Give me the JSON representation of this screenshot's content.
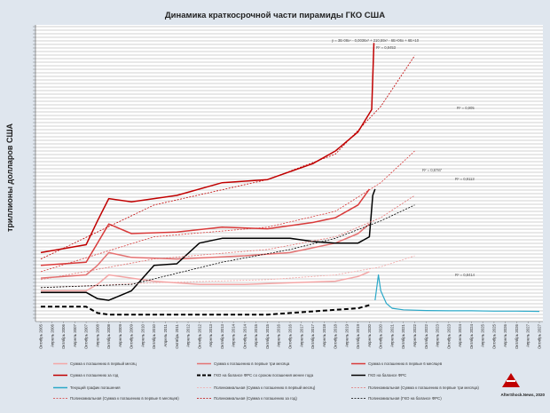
{
  "chart_data": {
    "type": "line",
    "title": "Динамика краткосрочной части пирамиды ГКО США",
    "ylabel": "триллионы долларов США",
    "xlabel": "",
    "grid": true,
    "legend_position": "bottom",
    "x_tick_labels": [
      "Октябрь 2005",
      "Апрель 2006",
      "Октябрь 2006",
      "Апрель 2007",
      "Октябрь 2007",
      "Апрель 2008",
      "Октябрь 2008",
      "Апрель 2009",
      "Октябрь 2009",
      "Апрель 2010",
      "Октябрь 2010",
      "Апрель 2011",
      "Октябрь 2011",
      "Апрель 2012",
      "Октябрь 2012",
      "Апрель 2013",
      "Октябрь 2013",
      "Апрель 2014",
      "Октябрь 2014",
      "Апрель 2015",
      "Октябрь 2015",
      "Апрель 2016",
      "Октябрь 2016",
      "Апрель 2017",
      "Октябрь 2017",
      "Апрель 2018",
      "Октябрь 2018",
      "Апрель 2019",
      "Октябрь 2019",
      "Апрель 2020",
      "Октябрь 2020",
      "Апрель 2021",
      "Октябрь 2021",
      "Апрель 2022",
      "Октябрь 2022",
      "Апрель 2023",
      "Октябрь 2023",
      "Апрель 2024",
      "Октябрь 2024",
      "Апрель 2025",
      "Октябрь 2025",
      "Апрель 2026",
      "Октябрь 2026",
      "Апрель 2027",
      "Октябрь 2027"
    ],
    "ylim": [
      0,
      9
    ],
    "equation": "y = 3E-08x⁴ - 0,0036x³ + 210,59x² - 6E+06x + 6E+10",
    "annotations": [
      "R² = 0,8453",
      "R² = 0,905",
      "R² = 0,8787",
      "R² = 0,9113",
      "R² = 0,8414"
    ],
    "series": [
      {
        "name": "Сумма к погашению в первый месяц",
        "color": "#f4a6a6",
        "style": "solid",
        "points": [
          [
            0,
            0.8
          ],
          [
            4,
            0.8
          ],
          [
            5,
            1.0
          ],
          [
            6,
            1.3
          ],
          [
            8,
            1.2
          ],
          [
            10,
            1.1
          ],
          [
            14,
            1.0
          ],
          [
            18,
            1.0
          ],
          [
            22,
            1.05
          ],
          [
            26,
            1.1
          ],
          [
            28,
            1.25
          ],
          [
            29,
            1.4
          ]
        ]
      },
      {
        "name": "Сумма к погашению в первые три месяца",
        "color": "#e47272",
        "style": "solid",
        "points": [
          [
            0,
            1.2
          ],
          [
            4,
            1.3
          ],
          [
            5,
            1.6
          ],
          [
            6,
            2.0
          ],
          [
            8,
            1.85
          ],
          [
            12,
            1.8
          ],
          [
            18,
            1.9
          ],
          [
            22,
            2.0
          ],
          [
            26,
            2.3
          ],
          [
            28,
            2.6
          ],
          [
            29,
            2.9
          ]
        ]
      },
      {
        "name": "Сумма к погашению в первые 6 месяцев",
        "color": "#d83a3a",
        "style": "solid",
        "points": [
          [
            0,
            1.6
          ],
          [
            4,
            1.7
          ],
          [
            5,
            2.3
          ],
          [
            6,
            2.9
          ],
          [
            8,
            2.6
          ],
          [
            12,
            2.65
          ],
          [
            16,
            2.8
          ],
          [
            20,
            2.75
          ],
          [
            24,
            2.95
          ],
          [
            26,
            3.1
          ],
          [
            28,
            3.5
          ],
          [
            29,
            4.0
          ]
        ]
      },
      {
        "name": "Сумма к погашению за год",
        "color": "#c00000",
        "style": "solid",
        "points": [
          [
            0,
            2.0
          ],
          [
            4,
            2.25
          ],
          [
            5,
            3.0
          ],
          [
            6,
            3.7
          ],
          [
            8,
            3.6
          ],
          [
            12,
            3.8
          ],
          [
            16,
            4.2
          ],
          [
            20,
            4.3
          ],
          [
            24,
            4.8
          ],
          [
            26,
            5.2
          ],
          [
            28,
            5.8
          ],
          [
            29.2,
            6.5
          ],
          [
            29.4,
            8.6
          ]
        ]
      },
      {
        "name": "ГКО на балансе ФРС со сроком погашения менее года",
        "color": "#000000",
        "style": "dashed",
        "points": [
          [
            0,
            0.3
          ],
          [
            4,
            0.3
          ],
          [
            5,
            0.1
          ],
          [
            6,
            0.05
          ],
          [
            8,
            0.05
          ],
          [
            10,
            0.05
          ],
          [
            12,
            0.05
          ],
          [
            14,
            0.05
          ],
          [
            16,
            0.05
          ],
          [
            18,
            0.05
          ],
          [
            20,
            0.05
          ],
          [
            22,
            0.1
          ],
          [
            24,
            0.15
          ],
          [
            26,
            0.2
          ],
          [
            28,
            0.25
          ],
          [
            29,
            0.35
          ]
        ]
      },
      {
        "name": "ГКО на балансе ФРС",
        "color": "#000000",
        "style": "solid",
        "points": [
          [
            0,
            0.75
          ],
          [
            4,
            0.75
          ],
          [
            5,
            0.55
          ],
          [
            6,
            0.5
          ],
          [
            8,
            0.8
          ],
          [
            10,
            1.6
          ],
          [
            12,
            1.65
          ],
          [
            14,
            2.3
          ],
          [
            16,
            2.45
          ],
          [
            18,
            2.45
          ],
          [
            20,
            2.45
          ],
          [
            22,
            2.45
          ],
          [
            24,
            2.35
          ],
          [
            26,
            2.3
          ],
          [
            28,
            2.3
          ],
          [
            29,
            2.5
          ],
          [
            29.3,
            3.8
          ],
          [
            29.5,
            4.0
          ]
        ]
      },
      {
        "name": "Текущий график погашения",
        "color": "#2aa8c8",
        "style": "solid",
        "points": [
          [
            29.5,
            0.5
          ],
          [
            29.8,
            1.3
          ],
          [
            30,
            0.8
          ],
          [
            30.5,
            0.4
          ],
          [
            31,
            0.25
          ],
          [
            32,
            0.2
          ],
          [
            34,
            0.18
          ],
          [
            36,
            0.17
          ],
          [
            38,
            0.17
          ],
          [
            40,
            0.16
          ],
          [
            42,
            0.16
          ],
          [
            44,
            0.15
          ]
        ]
      },
      {
        "name": "Полиномиальная (Сумма к погашению в первый месяц)",
        "color": "#f4a6a6",
        "style": "dotted",
        "points": [
          [
            0,
            0.9
          ],
          [
            10,
            1.05
          ],
          [
            20,
            1.15
          ],
          [
            26,
            1.3
          ],
          [
            30,
            1.55
          ],
          [
            33,
            1.9
          ]
        ]
      },
      {
        "name": "Полиномиальная (Сумма к погашению в первые три месяца)",
        "color": "#e47272",
        "style": "dotted",
        "points": [
          [
            0,
            1.15
          ],
          [
            10,
            1.8
          ],
          [
            20,
            2.1
          ],
          [
            26,
            2.5
          ],
          [
            30,
            3.1
          ],
          [
            33,
            3.8
          ]
        ]
      },
      {
        "name": "Полиномиальная (Сумма к погашению в первые 6 месяцев)",
        "color": "#d83a3a",
        "style": "dotted",
        "points": [
          [
            0,
            1.4
          ],
          [
            10,
            2.5
          ],
          [
            20,
            2.8
          ],
          [
            26,
            3.3
          ],
          [
            30,
            4.2
          ],
          [
            33,
            5.2
          ]
        ]
      },
      {
        "name": "Полиномиальная (Сумма к погашению за год)",
        "color": "#c00000",
        "style": "dotted",
        "points": [
          [
            0,
            1.8
          ],
          [
            10,
            3.5
          ],
          [
            20,
            4.3
          ],
          [
            26,
            5.1
          ],
          [
            30,
            6.6
          ],
          [
            33,
            8.2
          ]
        ]
      },
      {
        "name": "Полиномиальная (ГКО на балансе ФРС)",
        "color": "#000000",
        "style": "dotted",
        "points": [
          [
            0,
            0.9
          ],
          [
            8,
            1.0
          ],
          [
            16,
            1.7
          ],
          [
            22,
            2.1
          ],
          [
            26,
            2.45
          ],
          [
            30,
            3.0
          ],
          [
            33,
            3.5
          ]
        ]
      }
    ]
  },
  "footer": {
    "credit": "AfterShock.News, 2020"
  }
}
